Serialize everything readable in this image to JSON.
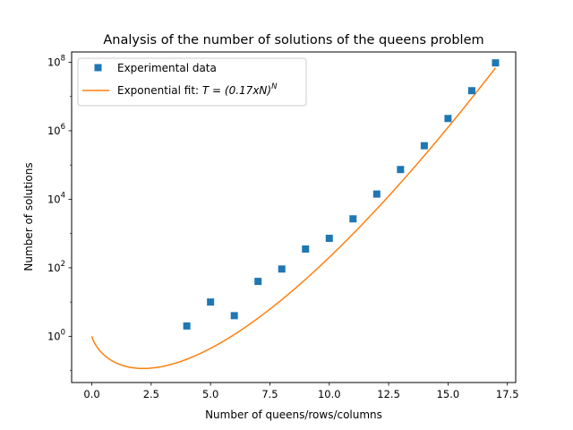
{
  "chart_data": {
    "type": "scatter",
    "title": "Analysis of the number of solutions of the queens problem",
    "xlabel": "Number of queens/rows/columns",
    "ylabel": "Number of solutions",
    "xlim": [
      -0.85,
      17.85
    ],
    "ylim_log10": [
      -1.35,
      8.3
    ],
    "y_scale": "log",
    "grid": false,
    "legend_position": "upper left",
    "x_ticks": [
      0.0,
      2.5,
      5.0,
      7.5,
      10.0,
      12.5,
      15.0,
      17.5
    ],
    "x_tick_labels": [
      "0.0",
      "2.5",
      "5.0",
      "7.5",
      "10.0",
      "12.5",
      "15.0",
      "17.5"
    ],
    "y_ticks": [
      1,
      100,
      10000,
      1000000,
      100000000
    ],
    "y_tick_labels": [
      {
        "base": "10",
        "exp": "0"
      },
      {
        "base": "10",
        "exp": "2"
      },
      {
        "base": "10",
        "exp": "4"
      },
      {
        "base": "10",
        "exp": "6"
      },
      {
        "base": "10",
        "exp": "8"
      }
    ],
    "series": [
      {
        "name": "Experimental data",
        "kind": "scatter",
        "marker": "square",
        "color": "#1f77b4",
        "x": [
          4,
          5,
          6,
          7,
          8,
          9,
          10,
          11,
          12,
          13,
          14,
          15,
          16,
          17
        ],
        "y": [
          2,
          10,
          4,
          40,
          92,
          352,
          724,
          2680,
          14200,
          73712,
          365596,
          2279184,
          14772512,
          95815104
        ]
      },
      {
        "name_prefix": "Exponential fit: ",
        "name_math": "T = (0.17xN)",
        "name_exp": "N",
        "kind": "line",
        "color": "#ff7f0e",
        "formula": "T = (0.17xN)^N",
        "coefficient": 0.17,
        "x_range": [
          0,
          17
        ]
      }
    ]
  }
}
